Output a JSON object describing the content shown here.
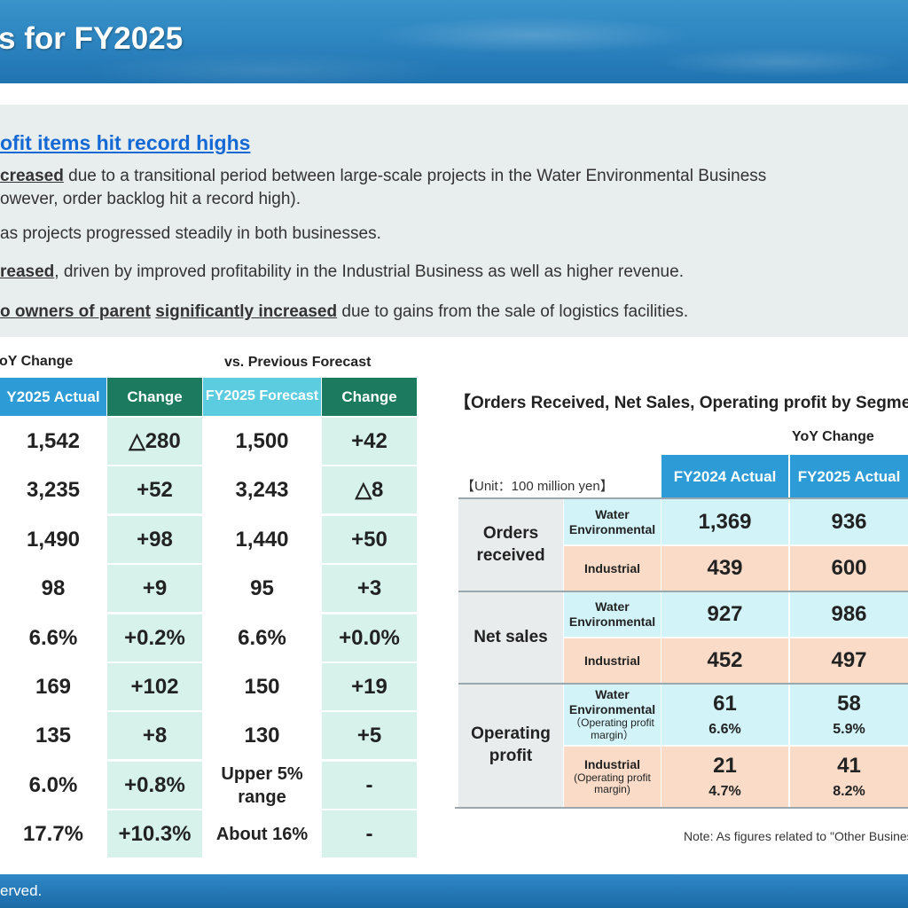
{
  "header": {
    "title": "s for FY2025"
  },
  "summary": {
    "heading": "ofit items hit record highs",
    "line1": [
      {
        "text": "creased",
        "u": true
      },
      {
        "text": " due to a transitional period between large-scale projects in the Water Environmental Business"
      }
    ],
    "line2": [
      {
        "text": "owever, order backlog hit a record high)."
      }
    ],
    "line3": [
      {
        "text": " as projects progressed steadily in both businesses."
      }
    ],
    "line4": [
      {
        "text": "reased",
        "u": true
      },
      {
        "text": ", driven by improved profitability in the Industrial Business as well as higher revenue."
      }
    ],
    "line5": [
      {
        "text": "o owners of parent",
        "u": true
      },
      {
        "text": " "
      },
      {
        "text": "significantly increased",
        "u": true
      },
      {
        "text": " due to gains from the sale of logistics facilities."
      }
    ]
  },
  "left_table": {
    "yoy_label": "oY Change",
    "forecast_label": "vs. Previous Forecast",
    "headers": {
      "actual": "Y2025 Actual",
      "change": "Change",
      "forecast": "FY2025 Forecast",
      "change2": "Change"
    },
    "rows": [
      {
        "actual": "1,542",
        "change": "△280",
        "forecast": "1,500",
        "change2": "+42"
      },
      {
        "actual": "3,235",
        "change": "+52",
        "forecast": "3,243",
        "change2": "△8"
      },
      {
        "actual": "1,490",
        "change": "+98",
        "forecast": "1,440",
        "change2": "+50"
      },
      {
        "actual": "98",
        "change": "+9",
        "forecast": "95",
        "change2": "+3"
      },
      {
        "actual": "6.6%",
        "change": "+0.2%",
        "forecast": "6.6%",
        "change2": "+0.0%"
      },
      {
        "actual": "169",
        "change": "+102",
        "forecast": "150",
        "change2": "+19"
      },
      {
        "actual": "135",
        "change": "+8",
        "forecast": "130",
        "change2": "+5"
      },
      {
        "actual": "6.0%",
        "change": "+0.8%",
        "forecast": "Upper 5% range",
        "change2": "-"
      },
      {
        "actual": "17.7%",
        "change": "+10.3%",
        "forecast": "About 16%",
        "change2": "-"
      }
    ]
  },
  "segment": {
    "title": "【Orders Received, Net Sales, Operating profit by Segmen",
    "yoy_label": "YoY Change",
    "unit": "【Unit：100 million yen】",
    "headers": {
      "fy2024": "FY2024 Actual",
      "fy2025": "FY2025 Actual"
    },
    "groups": {
      "orders": "Orders received",
      "net_sales": "Net sales",
      "op_profit": "Operating profit"
    },
    "sub": {
      "water": "Water Environmental",
      "industrial": "Industrial",
      "op_margin": "（Operating profit margin）",
      "op_margin2": "(Operating profit margin)"
    },
    "values": {
      "orders_water": [
        "1,369",
        "936"
      ],
      "orders_ind": [
        "439",
        "600"
      ],
      "sales_water": [
        "927",
        "986"
      ],
      "sales_ind": [
        "452",
        "497"
      ],
      "op_water": [
        "61",
        "58"
      ],
      "op_water_pct": [
        "6.6%",
        "5.9%"
      ],
      "op_ind": [
        "21",
        "41"
      ],
      "op_ind_pct": [
        "4.7%",
        "8.2%"
      ]
    },
    "note": "Note: As figures related to \"Other Busines"
  },
  "footer": {
    "copyright": "erved."
  },
  "colors": {
    "header_blue": "#2e86c1",
    "table_header_blue": "#2c9bd6",
    "table_header_green": "#1c7a5f",
    "table_header_cyan": "#5ccde0",
    "mint": "#d6f2ea",
    "cyan_row": "#d2f4f8",
    "peach_row": "#f9dbc8",
    "heading_blue": "#1569d4"
  }
}
